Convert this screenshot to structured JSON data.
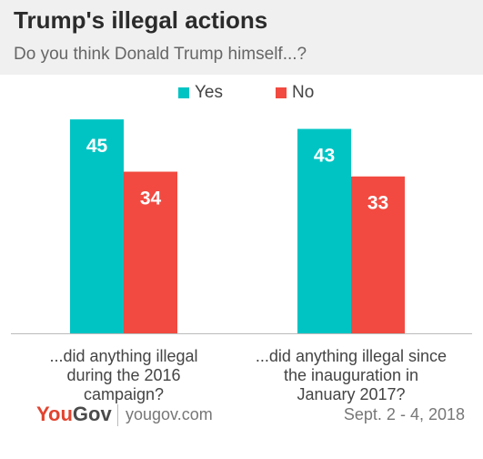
{
  "chart_data": {
    "type": "bar",
    "title": "Trump's illegal actions",
    "subtitle": "Do you think Donald Trump himself...?",
    "categories": [
      [
        "...did anything illegal",
        "during the 2016",
        "campaign?"
      ],
      [
        "...did anything illegal since",
        "the inauguration in",
        "January 2017?"
      ]
    ],
    "series": [
      {
        "name": "Yes",
        "color": "#00c4c4",
        "values": [
          45,
          43
        ]
      },
      {
        "name": "No",
        "color": "#f24a40",
        "values": [
          34,
          33
        ]
      }
    ],
    "ylim": [
      0,
      50
    ],
    "grid": false,
    "legend": "top-center"
  },
  "footer": {
    "logo_you": "You",
    "logo_gov": "Gov",
    "site": "yougov.com",
    "date": "Sept. 2 - 4, 2018"
  }
}
